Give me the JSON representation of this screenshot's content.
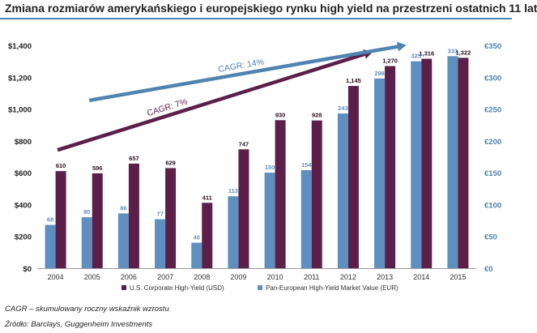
{
  "title": "Zmiana rozmiarów amerykańskiego i europejskiego rynku high yield na przestrzeni ostatnich 11 lat",
  "notes": {
    "cagr_def": "CAGR – skumulowany roczny wskaźnik wzrostu",
    "source": "Źródło: Barclays, Guggenheim Investments"
  },
  "colors": {
    "us": "#5b1f4a",
    "eu": "#5e8fbf",
    "arrow_us": "#5b1f4a",
    "arrow_eu": "#4f83b0",
    "axis_right": "#4f83b0",
    "axis_left": "#222222"
  },
  "chart_data": {
    "type": "bar",
    "categories": [
      "2004",
      "2005",
      "2006",
      "2007",
      "2008",
      "2009",
      "2010",
      "2011",
      "2012",
      "2013",
      "2014",
      "2015"
    ],
    "series": [
      {
        "name": "U.S. Corporate High-Yield (USD)",
        "axis": "left",
        "values": [
          610,
          596,
          657,
          629,
          411,
          747,
          930,
          928,
          1145,
          1270,
          1316,
          1322
        ],
        "labels": [
          "610",
          "596",
          "657",
          "629",
          "411",
          "747",
          "930",
          "928",
          "1,145",
          "1,270",
          "1,316",
          "1,322"
        ]
      },
      {
        "name": "Pan-European High-Yield Market Value (EUR)",
        "axis": "right",
        "values": [
          68,
          80,
          86,
          77,
          40,
          113,
          150,
          154,
          243,
          298,
          325,
          333
        ],
        "labels": [
          "68",
          "80",
          "86",
          "77",
          "40",
          "113",
          "150",
          "154",
          "243",
          "298",
          "325",
          "333"
        ]
      }
    ],
    "y_left": {
      "range": [
        0,
        1400
      ],
      "ticks": [
        "$0",
        "$200",
        "$400",
        "$600",
        "$800",
        "$1,000",
        "$1,200",
        "$1,400"
      ]
    },
    "y_right": {
      "range": [
        0,
        350
      ],
      "ticks": [
        "€0",
        "€50",
        "€100",
        "€150",
        "€200",
        "€250",
        "€300",
        "€350"
      ]
    },
    "grid": false,
    "legend_position": "bottom",
    "annotations": [
      {
        "id": "us",
        "text": "CAGR: 7%"
      },
      {
        "id": "eu",
        "text": "CAGR: 14%"
      }
    ]
  }
}
